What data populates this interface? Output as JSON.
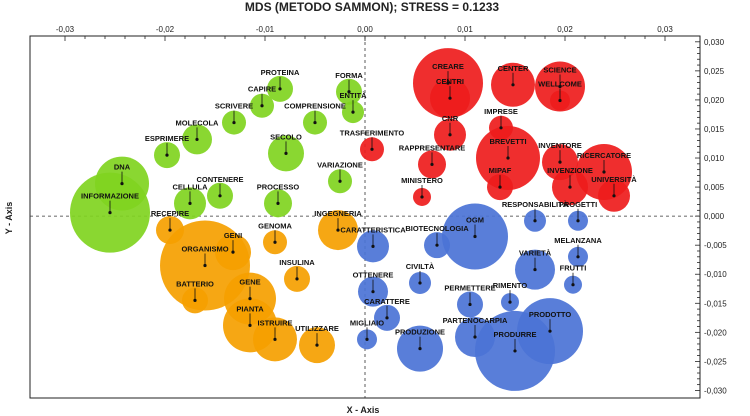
{
  "chart_data": {
    "type": "scatter",
    "title": "MDS (METODO SAMMON); STRESS = 0.1233",
    "xlabel": "X - Axis",
    "ylabel": "Y - Axis",
    "xlim": [
      -0.0335,
      0.0335
    ],
    "ylim": [
      -0.0313,
      0.031
    ],
    "x_ticks": [
      -0.03,
      -0.02,
      -0.01,
      0.0,
      0.01,
      0.02,
      0.03
    ],
    "x_tick_labels": [
      "-0,03",
      "-0,02",
      "-0,01",
      "0,00",
      "0,01",
      "0,02",
      "0,03"
    ],
    "y_ticks": [
      0.03,
      0.025,
      0.02,
      0.015,
      0.01,
      0.005,
      0.0,
      -0.005,
      -0.01,
      -0.015,
      -0.02,
      -0.025,
      -0.03
    ],
    "y_tick_labels": [
      "0,030",
      "0,025",
      "0,020",
      "0,015",
      "0,010",
      "0,005",
      "0,000",
      "-0,005",
      "-0,010",
      "-0,015",
      "-0,020",
      "-0,025",
      "-0,030"
    ],
    "grid": false,
    "legend": "none",
    "colors": {
      "red": "#ee1c1c",
      "green": "#80d420",
      "orange": "#f5a000",
      "blue": "#4b73d6"
    },
    "points": [
      {
        "label": "CREARE",
        "x": 0.0083,
        "y": 0.0229,
        "size": 0.0035,
        "color": "red"
      },
      {
        "label": "CENTRI",
        "x": 0.0085,
        "y": 0.0203,
        "size": 0.002,
        "color": "red"
      },
      {
        "label": "CENTER",
        "x": 0.0148,
        "y": 0.0226,
        "size": 0.0022,
        "color": "red"
      },
      {
        "label": "SCIENCE",
        "x": 0.0195,
        "y": 0.0223,
        "size": 0.0025,
        "color": "red"
      },
      {
        "label": "WELLCOME",
        "x": 0.0195,
        "y": 0.0199,
        "size": 0.001,
        "color": "red"
      },
      {
        "label": "IMPRESE",
        "x": 0.0136,
        "y": 0.0152,
        "size": 0.0012,
        "color": "red"
      },
      {
        "label": "CNR",
        "x": 0.0085,
        "y": 0.014,
        "size": 0.0016,
        "color": "red"
      },
      {
        "label": "BREVETTI",
        "x": 0.0143,
        "y": 0.01,
        "size": 0.0032,
        "color": "red"
      },
      {
        "label": "INVENTORE",
        "x": 0.0195,
        "y": 0.0093,
        "size": 0.0018,
        "color": "red"
      },
      {
        "label": "RICERCATORE",
        "x": 0.0239,
        "y": 0.0076,
        "size": 0.0028,
        "color": "red"
      },
      {
        "label": "RAPPRESENTARE",
        "x": 0.0067,
        "y": 0.0089,
        "size": 0.0014,
        "color": "red"
      },
      {
        "label": "MIPAF",
        "x": 0.0135,
        "y": 0.005,
        "size": 0.0013,
        "color": "red"
      },
      {
        "label": "INVENZIONE",
        "x": 0.0205,
        "y": 0.005,
        "size": 0.0018,
        "color": "red"
      },
      {
        "label": "UNIVERSITÀ",
        "x": 0.0249,
        "y": 0.0035,
        "size": 0.0016,
        "color": "red"
      },
      {
        "label": "MINISTERO",
        "x": 0.0057,
        "y": 0.0033,
        "size": 0.0009,
        "color": "red"
      },
      {
        "label": "TRASFERIMENTO",
        "x": 0.0007,
        "y": 0.0115,
        "size": 0.0012,
        "color": "red"
      },
      {
        "label": "PROTEINA",
        "x": -0.0085,
        "y": 0.0219,
        "size": 0.0013,
        "color": "green"
      },
      {
        "label": "FORMA",
        "x": -0.0016,
        "y": 0.0214,
        "size": 0.0013,
        "color": "green"
      },
      {
        "label": "CAPIRE",
        "x": -0.0103,
        "y": 0.019,
        "size": 0.0012,
        "color": "green"
      },
      {
        "label": "ENTITÀ",
        "x": -0.0012,
        "y": 0.0179,
        "size": 0.0011,
        "color": "green"
      },
      {
        "label": "SCRIVERE",
        "x": -0.0131,
        "y": 0.0161,
        "size": 0.0012,
        "color": "green"
      },
      {
        "label": "COMPRENSIONE",
        "x": -0.005,
        "y": 0.0161,
        "size": 0.0012,
        "color": "green"
      },
      {
        "label": "MOLECOLA",
        "x": -0.0168,
        "y": 0.0132,
        "size": 0.0015,
        "color": "green"
      },
      {
        "label": "SECOLO",
        "x": -0.0079,
        "y": 0.0108,
        "size": 0.0018,
        "color": "green"
      },
      {
        "label": "ESPRIMERE",
        "x": -0.0198,
        "y": 0.0105,
        "size": 0.0013,
        "color": "green"
      },
      {
        "label": "DNA",
        "x": -0.0243,
        "y": 0.0056,
        "size": 0.0027,
        "color": "green"
      },
      {
        "label": "VARIAZIONE",
        "x": -0.0025,
        "y": 0.006,
        "size": 0.0012,
        "color": "green"
      },
      {
        "label": "CONTENERE",
        "x": -0.0145,
        "y": 0.0035,
        "size": 0.0013,
        "color": "green"
      },
      {
        "label": "CELLULA",
        "x": -0.0175,
        "y": 0.0022,
        "size": 0.0016,
        "color": "green"
      },
      {
        "label": "PROCESSO",
        "x": -0.0087,
        "y": 0.0022,
        "size": 0.0014,
        "color": "green"
      },
      {
        "label": "INFORMAZIONE",
        "x": -0.0255,
        "y": 0.0006,
        "size": 0.004,
        "color": "green"
      },
      {
        "label": "INGEGNERIA",
        "x": -0.0027,
        "y": -0.0024,
        "size": 0.002,
        "color": "orange"
      },
      {
        "label": "RECEPIRE",
        "x": -0.0195,
        "y": -0.0024,
        "size": 0.0014,
        "color": "orange"
      },
      {
        "label": "GENOMA",
        "x": -0.009,
        "y": -0.0045,
        "size": 0.0012,
        "color": "orange"
      },
      {
        "label": "GENI",
        "x": -0.0132,
        "y": -0.0062,
        "size": 0.0018,
        "color": "orange"
      },
      {
        "label": "ORGANISMO",
        "x": -0.016,
        "y": -0.0085,
        "size": 0.0045,
        "color": "orange"
      },
      {
        "label": "INSULINA",
        "x": -0.0068,
        "y": -0.0108,
        "size": 0.0013,
        "color": "orange"
      },
      {
        "label": "BATTERIO",
        "x": -0.017,
        "y": -0.0145,
        "size": 0.0013,
        "color": "orange"
      },
      {
        "label": "GENE",
        "x": -0.0115,
        "y": -0.0142,
        "size": 0.0026,
        "color": "orange"
      },
      {
        "label": "PIANTA",
        "x": -0.0115,
        "y": -0.0188,
        "size": 0.0027,
        "color": "orange"
      },
      {
        "label": "ISTRUIRE",
        "x": -0.009,
        "y": -0.0212,
        "size": 0.0022,
        "color": "orange"
      },
      {
        "label": "UTILIZZARE",
        "x": -0.0048,
        "y": -0.0222,
        "size": 0.0018,
        "color": "orange"
      },
      {
        "label": "OGM",
        "x": 0.011,
        "y": -0.0035,
        "size": 0.0033,
        "color": "blue"
      },
      {
        "label": "RESPONSABILITÀ",
        "x": 0.017,
        "y": -0.0008,
        "size": 0.0011,
        "color": "blue"
      },
      {
        "label": "PROGETTI",
        "x": 0.0213,
        "y": -0.0008,
        "size": 0.001,
        "color": "blue"
      },
      {
        "label": "BIOTECNOLOGIA",
        "x": 0.0072,
        "y": -0.005,
        "size": 0.0013,
        "color": "blue"
      },
      {
        "label": "CARATTERISTICA",
        "x": 0.0008,
        "y": -0.0052,
        "size": 0.0016,
        "color": "blue"
      },
      {
        "label": "MELANZANA",
        "x": 0.0213,
        "y": -0.007,
        "size": 0.001,
        "color": "blue"
      },
      {
        "label": "VARIETÀ",
        "x": 0.017,
        "y": -0.0092,
        "size": 0.002,
        "color": "blue"
      },
      {
        "label": "FRUTTI",
        "x": 0.0208,
        "y": -0.0118,
        "size": 0.0009,
        "color": "blue"
      },
      {
        "label": "CIVILTÀ",
        "x": 0.0055,
        "y": -0.0115,
        "size": 0.0011,
        "color": "blue"
      },
      {
        "label": "OTTENERE",
        "x": 0.0008,
        "y": -0.013,
        "size": 0.0015,
        "color": "blue"
      },
      {
        "label": "PERMETTERE",
        "x": 0.0105,
        "y": -0.0152,
        "size": 0.0013,
        "color": "blue"
      },
      {
        "label": "RIMENTO",
        "x": 0.0145,
        "y": -0.0148,
        "size": 0.0009,
        "color": "blue"
      },
      {
        "label": "CARATTERE",
        "x": 0.0022,
        "y": -0.0175,
        "size": 0.0013,
        "color": "blue"
      },
      {
        "label": "PARTENOCARPIA",
        "x": 0.011,
        "y": -0.0208,
        "size": 0.002,
        "color": "blue"
      },
      {
        "label": "PRODOTTO",
        "x": 0.0185,
        "y": -0.0198,
        "size": 0.0033,
        "color": "blue"
      },
      {
        "label": "MIGLIAIO",
        "x": 0.0002,
        "y": -0.0212,
        "size": 0.001,
        "color": "blue"
      },
      {
        "label": "PRODUZIONE",
        "x": 0.0055,
        "y": -0.0228,
        "size": 0.0023,
        "color": "blue"
      },
      {
        "label": "PRODURRE",
        "x": 0.015,
        "y": -0.0232,
        "size": 0.004,
        "color": "blue"
      }
    ]
  }
}
